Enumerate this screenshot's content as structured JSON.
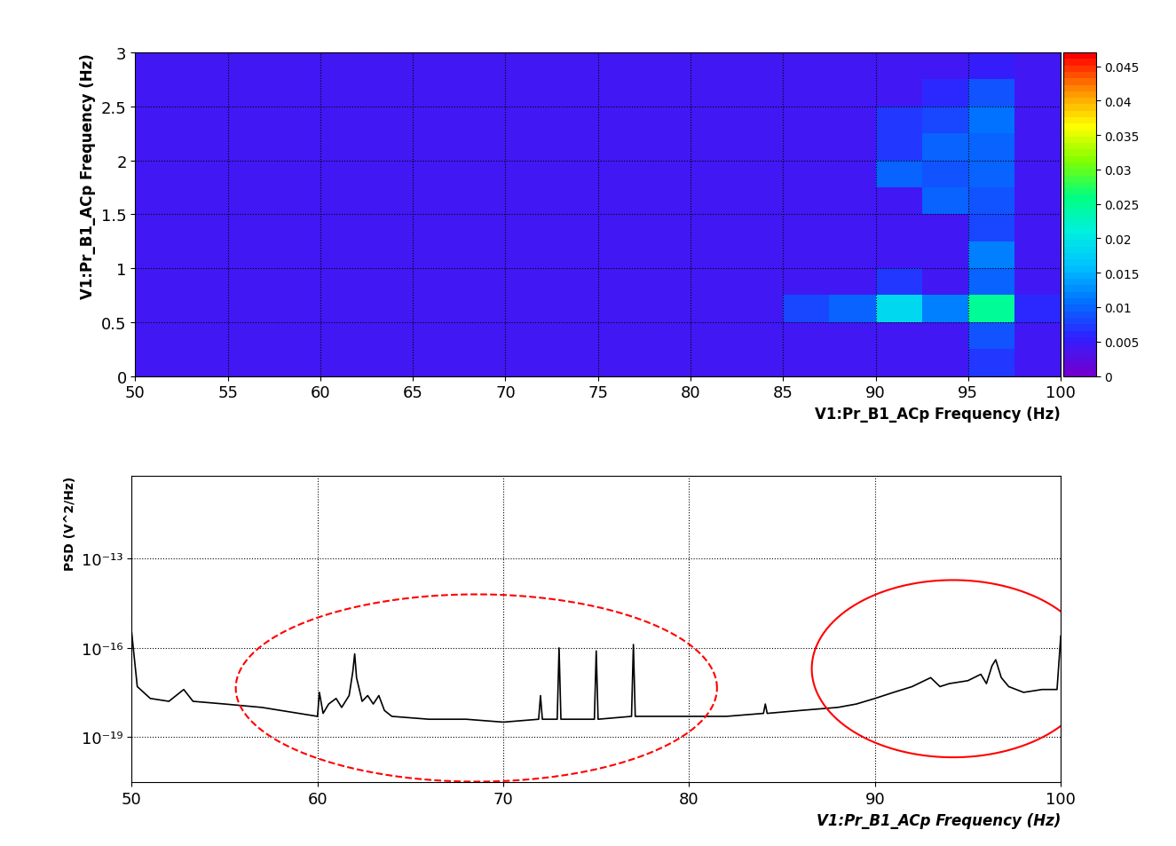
{
  "chart_data": [
    {
      "type": "heatmap",
      "xlabel": "V1:Pr_B1_ACp Frequency (Hz)",
      "ylabel": "V1:Pr_B1_ACp Frequency (Hz)",
      "x_edges": [
        50,
        52.5,
        55,
        57.5,
        60,
        62.5,
        65,
        67.5,
        70,
        72.5,
        75,
        77.5,
        80,
        82.5,
        85,
        87.5,
        90,
        92.5,
        95,
        97.5,
        100
      ],
      "y_edges": [
        0,
        0.25,
        0.5,
        0.75,
        1,
        1.25,
        1.5,
        1.75,
        2,
        2.25,
        2.5,
        2.75,
        3
      ],
      "cells": [
        [
          0.004,
          0.004,
          0.004,
          0.004,
          0.004,
          0.004,
          0.004,
          0.004,
          0.004,
          0.004,
          0.004,
          0.004,
          0.004,
          0.004,
          0.004,
          0.004,
          0.004,
          0.004,
          0.007,
          0.004
        ],
        [
          0.004,
          0.004,
          0.004,
          0.004,
          0.004,
          0.004,
          0.004,
          0.004,
          0.004,
          0.004,
          0.004,
          0.004,
          0.004,
          0.004,
          0.004,
          0.004,
          0.004,
          0.004,
          0.009,
          0.004
        ],
        [
          0.004,
          0.004,
          0.004,
          0.004,
          0.004,
          0.004,
          0.004,
          0.004,
          0.004,
          0.004,
          0.004,
          0.004,
          0.004,
          0.004,
          0.008,
          0.01,
          0.018,
          0.012,
          0.025,
          0.006
        ],
        [
          0.004,
          0.004,
          0.004,
          0.004,
          0.004,
          0.004,
          0.004,
          0.004,
          0.004,
          0.004,
          0.004,
          0.004,
          0.004,
          0.004,
          0.004,
          0.004,
          0.007,
          0.004,
          0.01,
          0.004
        ],
        [
          0.004,
          0.004,
          0.004,
          0.004,
          0.004,
          0.004,
          0.004,
          0.004,
          0.004,
          0.004,
          0.004,
          0.004,
          0.004,
          0.004,
          0.004,
          0.004,
          0.004,
          0.004,
          0.012,
          0.004
        ],
        [
          0.004,
          0.004,
          0.004,
          0.004,
          0.004,
          0.004,
          0.004,
          0.004,
          0.004,
          0.004,
          0.004,
          0.004,
          0.004,
          0.004,
          0.004,
          0.004,
          0.004,
          0.004,
          0.008,
          0.004
        ],
        [
          0.004,
          0.004,
          0.004,
          0.004,
          0.004,
          0.004,
          0.004,
          0.004,
          0.004,
          0.004,
          0.004,
          0.004,
          0.004,
          0.004,
          0.004,
          0.004,
          0.004,
          0.01,
          0.009,
          0.004
        ],
        [
          0.004,
          0.004,
          0.004,
          0.004,
          0.004,
          0.004,
          0.004,
          0.004,
          0.004,
          0.004,
          0.004,
          0.004,
          0.004,
          0.004,
          0.004,
          0.004,
          0.01,
          0.009,
          0.01,
          0.004
        ],
        [
          0.004,
          0.004,
          0.004,
          0.004,
          0.004,
          0.004,
          0.004,
          0.004,
          0.004,
          0.004,
          0.004,
          0.004,
          0.004,
          0.004,
          0.004,
          0.004,
          0.007,
          0.01,
          0.01,
          0.004
        ],
        [
          0.004,
          0.004,
          0.004,
          0.004,
          0.004,
          0.004,
          0.004,
          0.004,
          0.004,
          0.004,
          0.004,
          0.004,
          0.004,
          0.004,
          0.004,
          0.004,
          0.007,
          0.008,
          0.011,
          0.004
        ],
        [
          0.004,
          0.004,
          0.004,
          0.004,
          0.004,
          0.004,
          0.004,
          0.004,
          0.004,
          0.004,
          0.004,
          0.004,
          0.004,
          0.004,
          0.004,
          0.004,
          0.004,
          0.006,
          0.009,
          0.004
        ],
        [
          0.004,
          0.004,
          0.004,
          0.004,
          0.004,
          0.004,
          0.004,
          0.004,
          0.004,
          0.004,
          0.004,
          0.004,
          0.004,
          0.004,
          0.004,
          0.004,
          0.004,
          0.004,
          0.005,
          0.004
        ]
      ],
      "xlim": [
        50,
        100
      ],
      "ylim": [
        0,
        3
      ],
      "xticks": [
        50,
        55,
        60,
        65,
        70,
        75,
        80,
        85,
        90,
        95,
        100
      ],
      "yticks": [
        0,
        0.5,
        1,
        1.5,
        2,
        2.5,
        3
      ],
      "grid": true,
      "colorbar": {
        "range": [
          0,
          0.047
        ],
        "ticks": [
          0,
          0.005,
          0.01,
          0.015,
          0.02,
          0.025,
          0.03,
          0.035,
          0.04,
          0.045
        ],
        "colors": [
          "#7000d0",
          "#3020ff",
          "#0070ff",
          "#00c0ff",
          "#00f0e0",
          "#00ff80",
          "#80ff00",
          "#ffff00",
          "#ff9000",
          "#ff0000"
        ]
      }
    },
    {
      "type": "line",
      "xlabel": "V1:Pr_B1_ACp Frequency (Hz)",
      "ylabel": "PSD (V^2/Hz)",
      "log": "y",
      "color": "#000000",
      "x": [
        50,
        50.3,
        51,
        52,
        52.8,
        53.3,
        55,
        57,
        59,
        60,
        60.1,
        60.3,
        60.6,
        61,
        61.3,
        61.7,
        61.9,
        62,
        62.1,
        62.4,
        62.7,
        63,
        63.3,
        63.6,
        64,
        66,
        68,
        70,
        71.9,
        72,
        72.1,
        72.9,
        73,
        73.1,
        74.9,
        75,
        75.1,
        76.9,
        77,
        77.1,
        79,
        82,
        84,
        84.1,
        84.2,
        86,
        88,
        89,
        90,
        91,
        92,
        93,
        93.5,
        94,
        95,
        95.7,
        96,
        96.3,
        96.5,
        96.8,
        97.2,
        98,
        99,
        99.8,
        100
      ],
      "values": [
        3.2e-16,
        5e-18,
        2e-18,
        1.6e-18,
        4e-18,
        1.6e-18,
        1.3e-18,
        1e-18,
        6.3e-19,
        5e-19,
        3.2e-18,
        6.3e-19,
        1.3e-18,
        2e-18,
        1e-18,
        2.5e-18,
        1.6e-17,
        6.3e-17,
        1e-17,
        1.6e-18,
        2.5e-18,
        1.3e-18,
        2.5e-18,
        7.9e-19,
        5e-19,
        4e-19,
        4e-19,
        3.2e-19,
        4e-19,
        2.5e-18,
        4e-19,
        4e-19,
        1e-16,
        4e-19,
        4e-19,
        7.9e-17,
        4e-19,
        5e-19,
        1.3e-16,
        5e-19,
        5e-19,
        5e-19,
        6.3e-19,
        1.3e-18,
        6.3e-19,
        7.9e-19,
        1e-18,
        1.3e-18,
        2e-18,
        3.2e-18,
        5e-18,
        1e-17,
        5e-18,
        6.3e-18,
        7.9e-18,
        1.3e-17,
        6.3e-18,
        2.5e-17,
        4e-17,
        1e-17,
        5e-18,
        3.2e-18,
        4e-18,
        4e-18,
        2.5e-16
      ],
      "xlim": [
        50,
        100
      ],
      "ylim": [
        3e-21,
        6e-11
      ],
      "xticks": [
        50,
        60,
        70,
        80,
        90,
        100
      ],
      "yticks": [
        {
          "value": 1e-13,
          "label": "10⁻¹³"
        },
        {
          "value": 1e-16,
          "label": "10⁻¹⁶"
        },
        {
          "value": 1e-19,
          "label": "10⁻¹⁹"
        }
      ],
      "grid": true,
      "regions": [
        {
          "x": [
            55.6,
            81.5
          ],
          "y": [
            6.3e-15,
            3.2e-21
          ],
          "color": "#ff0000",
          "line_style": "dashed"
        },
        {
          "x": [
            86.6,
            101.8
          ],
          "y": [
            1.9e-14,
            2.1e-20
          ],
          "color": "#ff0000",
          "line_style": "solid"
        }
      ]
    }
  ]
}
